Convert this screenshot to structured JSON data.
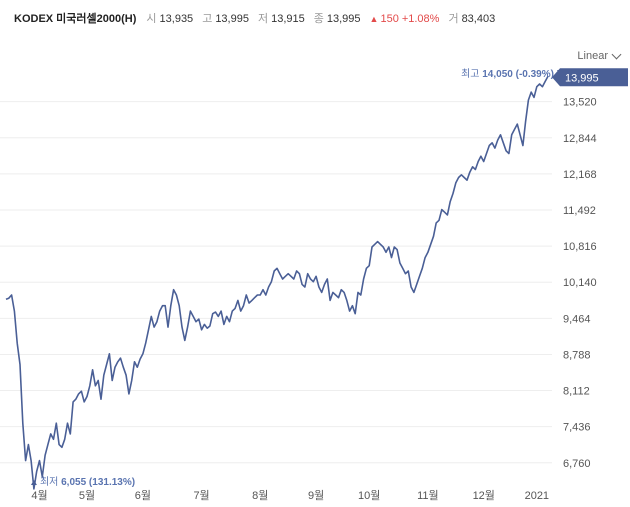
{
  "header": {
    "name": "KODEX 미국러셀2000(H)",
    "open_label": "시",
    "open": "13,935",
    "high_label": "고",
    "high": "13,995",
    "low_label": "저",
    "low": "13,915",
    "close_label": "종",
    "close": "13,995",
    "change": "150",
    "change_pct": "+1.08%",
    "volume_label": "거",
    "volume": "83,403"
  },
  "scale_label": "Linear",
  "colors": {
    "line": "#4a5f96",
    "up": "#e34a4a",
    "grid": "#eeeeee",
    "marker": "#4a5f96"
  },
  "chart_data": {
    "type": "line",
    "ylim": [
      6400,
      14300
    ],
    "yticks": [
      6760,
      7436,
      8112,
      8788,
      9464,
      10140,
      10816,
      11492,
      12168,
      12844,
      13520
    ],
    "ytick_labels": [
      "6,760",
      "7,436",
      "8,112",
      "8,788",
      "9,464",
      "10,140",
      "10,816",
      "11,492",
      "12,168",
      "12,844",
      "13,520"
    ],
    "xticks": [
      {
        "label": "4월",
        "index": 12
      },
      {
        "label": "5월",
        "index": 29
      },
      {
        "label": "6월",
        "index": 49
      },
      {
        "label": "7월",
        "index": 70
      },
      {
        "label": "8월",
        "index": 91
      },
      {
        "label": "9월",
        "index": 111
      },
      {
        "label": "10월",
        "index": 130
      },
      {
        "label": "11월",
        "index": 151
      },
      {
        "label": "12월",
        "index": 171
      },
      {
        "label": "2021",
        "index": 190
      }
    ],
    "values": [
      9820,
      9840,
      9900,
      9600,
      9000,
      8600,
      7500,
      6800,
      7100,
      6800,
      6270,
      6600,
      6800,
      6500,
      6900,
      7100,
      7300,
      7200,
      7500,
      7100,
      7050,
      7200,
      7500,
      7300,
      7900,
      7950,
      8050,
      8100,
      7900,
      8000,
      8200,
      8500,
      8200,
      8300,
      7950,
      8400,
      8600,
      8800,
      8300,
      8550,
      8650,
      8720,
      8550,
      8400,
      8050,
      8300,
      8650,
      8550,
      8700,
      8800,
      9000,
      9250,
      9500,
      9300,
      9400,
      9600,
      9700,
      9700,
      9300,
      9700,
      10000,
      9900,
      9700,
      9300,
      9050,
      9300,
      9600,
      9500,
      9400,
      9450,
      9250,
      9350,
      9280,
      9320,
      9550,
      9580,
      9500,
      9600,
      9350,
      9500,
      9400,
      9600,
      9650,
      9800,
      9600,
      9700,
      9900,
      9750,
      9800,
      9850,
      9900,
      9900,
      10000,
      9900,
      10050,
      10150,
      10350,
      10400,
      10300,
      10200,
      10250,
      10300,
      10250,
      10200,
      10350,
      10300,
      10100,
      10050,
      10300,
      10200,
      10150,
      10250,
      10050,
      9950,
      10100,
      10200,
      9800,
      9950,
      9900,
      9850,
      10000,
      9950,
      9800,
      9600,
      9700,
      9550,
      9950,
      9900,
      10200,
      10400,
      10450,
      10800,
      10850,
      10900,
      10850,
      10800,
      10700,
      10800,
      10600,
      10800,
      10750,
      10500,
      10400,
      10300,
      10350,
      10050,
      9950,
      10100,
      10250,
      10400,
      10600,
      10700,
      10850,
      11000,
      11250,
      11300,
      11500,
      11450,
      11400,
      11650,
      11800,
      12000,
      12100,
      12150,
      12100,
      12050,
      12200,
      12300,
      12250,
      12400,
      12500,
      12400,
      12550,
      12700,
      12750,
      12650,
      12800,
      12900,
      12750,
      12600,
      12550,
      12900,
      13000,
      13100,
      12900,
      12700,
      13150,
      13550,
      13700,
      13600,
      13800,
      13850,
      13800,
      13900,
      13995
    ],
    "max_label": "최고",
    "max_value": "14,050 (-0.39%)",
    "max_index": 199,
    "min_label": "최저",
    "min_value": "6,055 (131.13%)",
    "min_index": 10,
    "last_value": "13,995"
  }
}
